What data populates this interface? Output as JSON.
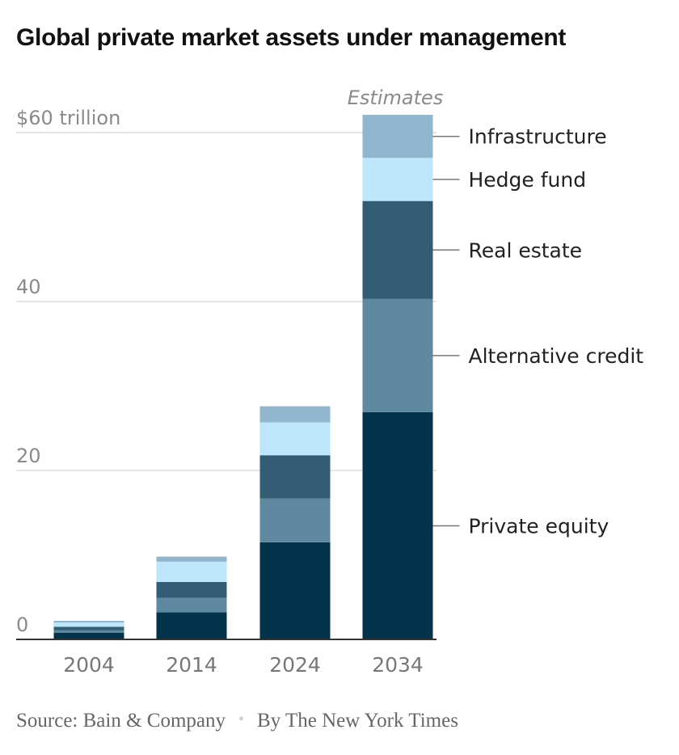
{
  "chart_data": {
    "type": "bar",
    "stacked": true,
    "title": "Global private market assets under management",
    "annotation": "Estimates",
    "categories": [
      "2004",
      "2014",
      "2024",
      "2034"
    ],
    "series": [
      {
        "name": "Private equity",
        "color": "#02334a",
        "values": [
          0.8,
          3.2,
          11.5,
          26.9
        ]
      },
      {
        "name": "Alternative credit",
        "color": "#5f89a1",
        "values": [
          0.3,
          1.7,
          5.2,
          13.4
        ]
      },
      {
        "name": "Real estate",
        "color": "#335d74",
        "values": [
          0.4,
          1.9,
          5.1,
          11.6
        ]
      },
      {
        "name": "Hedge fund",
        "color": "#bde6fb",
        "values": [
          0.5,
          2.4,
          3.9,
          5.1
        ]
      },
      {
        "name": "Infrastructure",
        "color": "#90b6cd",
        "values": [
          0.2,
          0.6,
          1.9,
          5.1
        ]
      }
    ],
    "yticks": [
      {
        "value": 0,
        "label": "0"
      },
      {
        "value": 20,
        "label": "20"
      },
      {
        "value": 40,
        "label": "40"
      },
      {
        "value": 60,
        "label": "$60 trillion"
      }
    ],
    "ylim": [
      0,
      64
    ],
    "xlabel": "",
    "ylabel": "",
    "grid": true,
    "legend": "right, labels beside 2034 bar"
  },
  "footer": {
    "source": "Source: Bain & Company",
    "separator": "•",
    "credit": "By The New York Times"
  }
}
